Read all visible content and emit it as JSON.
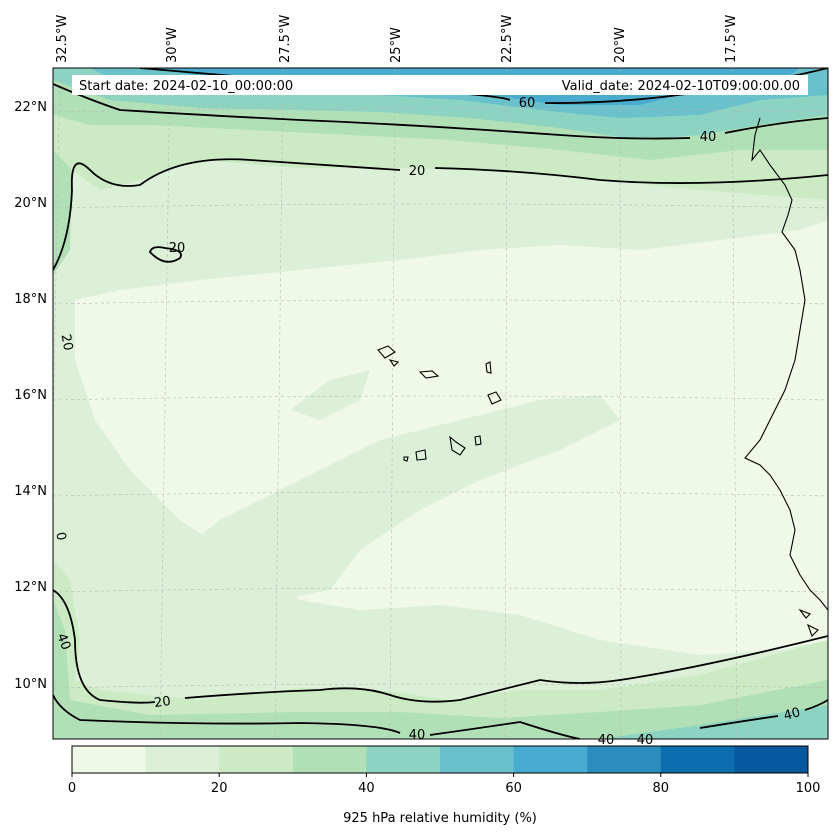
{
  "header": {
    "start_date": "Start date: 2024-02-10_00:00:00",
    "valid_date": "Valid_date: 2024-02-10T09:00:00.00"
  },
  "longitude_labels": [
    "32.5°W",
    "30°W",
    "27.5°W",
    "25°W",
    "22.5°W",
    "20°W",
    "17.5°W"
  ],
  "latitude_labels": [
    "22°N",
    "20°N",
    "18°N",
    "16°N",
    "14°N",
    "12°N",
    "10°N"
  ],
  "contour_labels": [
    "60",
    "40",
    "20",
    "20",
    "20",
    "0",
    "40",
    "20",
    "40",
    "40",
    "40",
    "40"
  ],
  "colorbar": {
    "title": "925 hPa relative humidity (%)",
    "ticks": [
      "0",
      "20",
      "40",
      "60",
      "80",
      "100"
    ],
    "colors": [
      "#f0f9e8",
      "#dbf0d6",
      "#ccebc5",
      "#b1e0b7",
      "#8dd3c2",
      "#69c1cb",
      "#4aabd1",
      "#2b8cbe",
      "#0d6ead",
      "#08589e"
    ]
  },
  "colors": {
    "land_line": "#000000",
    "contour": "#000000",
    "grid": "#b8b8b8"
  }
}
